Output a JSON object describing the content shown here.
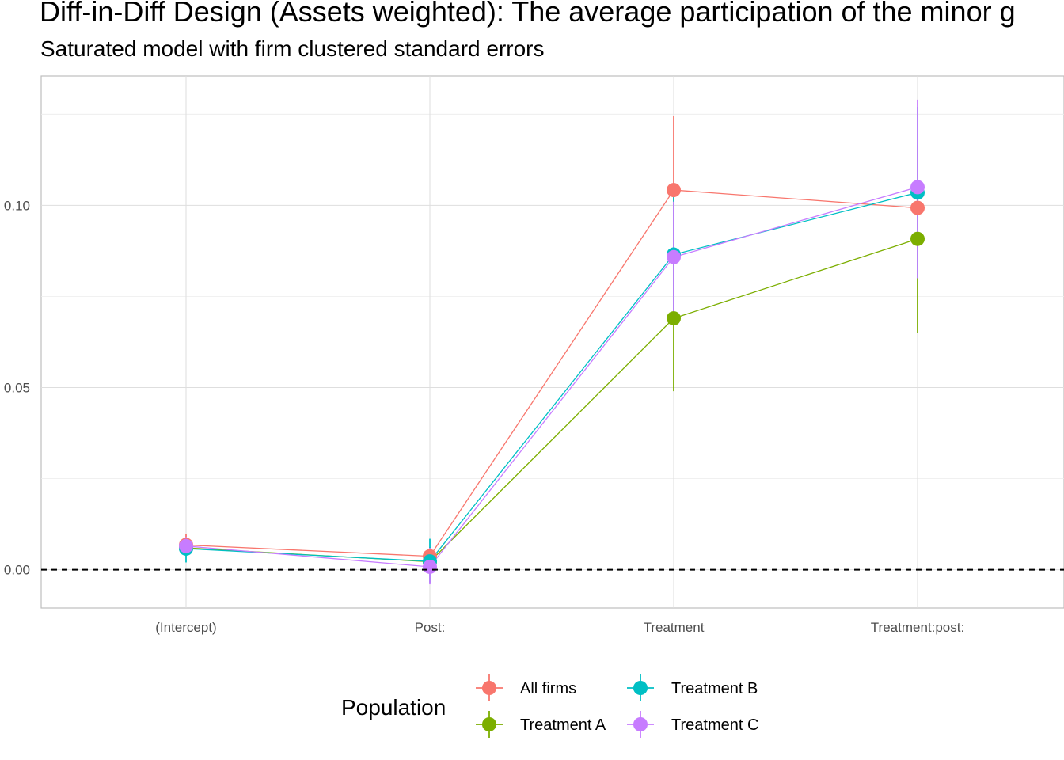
{
  "chart_data": {
    "type": "line",
    "title": "Diff-in-Diff Design (Assets weighted): The average participation of the minor g",
    "subtitle": "Saturated model with firm clustered standard errors",
    "xlabel": "",
    "ylabel": "",
    "categories": [
      "(Intercept)",
      "Post:",
      "Treatment",
      "Treatment:post:"
    ],
    "ylim": [
      -0.0105,
      0.1355
    ],
    "y_ticks": [
      0.0,
      0.05,
      0.1
    ],
    "y_tick_labels": [
      "0.00",
      "0.05",
      "0.10"
    ],
    "reference_line": {
      "y": 0,
      "style": "dashed"
    },
    "grid": true,
    "legend": {
      "title": "Population",
      "position": "bottom"
    },
    "series": [
      {
        "name": "All firms",
        "color": "#F8766D",
        "values": [
          0.0068,
          0.0037,
          0.1042,
          0.0993
        ],
        "lower": [
          0.0045,
          0.0012,
          0.085,
          0.0885
        ],
        "upper": [
          0.0098,
          0.0062,
          0.1245,
          0.11
        ]
      },
      {
        "name": "Treatment A",
        "color": "#7CAE00",
        "values": [
          0.006,
          0.0022,
          0.069,
          0.0908
        ],
        "lower": [
          0.0038,
          0.0005,
          0.049,
          0.065
        ],
        "upper": [
          0.0082,
          0.004,
          0.0885,
          0.1165
        ]
      },
      {
        "name": "Treatment B",
        "color": "#00BFC4",
        "values": [
          0.0058,
          0.0023,
          0.0865,
          0.1035
        ],
        "lower": [
          0.002,
          -0.0035,
          0.07,
          0.08
        ],
        "upper": [
          0.0085,
          0.0085,
          0.1025,
          0.127
        ]
      },
      {
        "name": "Treatment C",
        "color": "#C77CFF",
        "values": [
          0.0065,
          0.0008,
          0.0858,
          0.105
        ],
        "lower": [
          0.0045,
          -0.004,
          0.07,
          0.08
        ],
        "upper": [
          0.009,
          0.006,
          0.101,
          0.129
        ]
      }
    ]
  }
}
